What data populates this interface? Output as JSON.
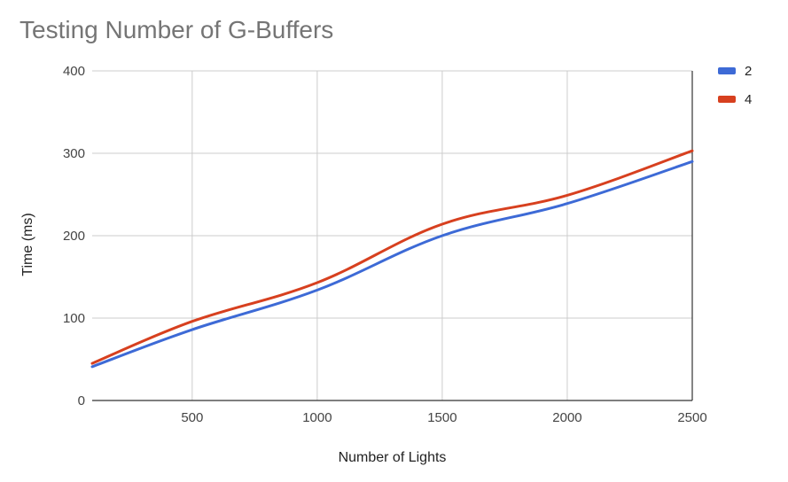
{
  "chart_data": {
    "type": "line",
    "title": "Testing Number of G-Buffers",
    "xlabel": "Number of Lights",
    "ylabel": "Time (ms)",
    "x": [
      100,
      500,
      1000,
      1500,
      2000,
      2500
    ],
    "xlim": [
      100,
      2500
    ],
    "ylim": [
      0,
      400
    ],
    "xticks": [
      500,
      1000,
      1500,
      2000,
      2500
    ],
    "yticks": [
      0,
      100,
      200,
      300,
      400
    ],
    "grid": true,
    "legend_position": "right",
    "series": [
      {
        "name": "2",
        "color": "#3d6ad6",
        "values": [
          41,
          86,
          134,
          200,
          239,
          290
        ]
      },
      {
        "name": "4",
        "color": "#d7401f",
        "values": [
          45,
          96,
          143,
          214,
          249,
          303
        ]
      }
    ]
  }
}
